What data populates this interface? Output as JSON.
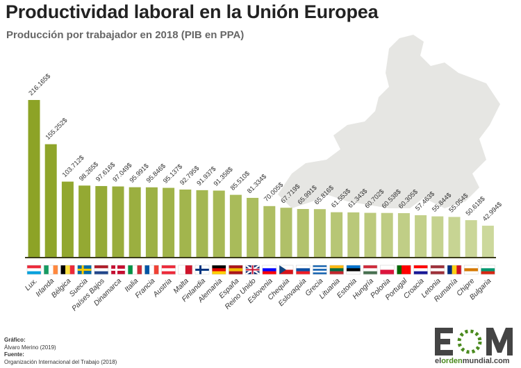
{
  "header": {
    "title": "Productividad laboral en la Unión Europea",
    "subtitle": "Producción por trabajador en 2018 (PIB en PPA)"
  },
  "chart_data": {
    "type": "bar",
    "title": "Productividad laboral en la Unión Europea",
    "subtitle": "Producción por trabajador en 2018 (PIB en PPA)",
    "xlabel": "",
    "ylabel": "",
    "ylim": [
      0,
      220000
    ],
    "grid": false,
    "categories": [
      "Lux.",
      "Irlanda",
      "Bélgica",
      "Suecia",
      "Países Bajos",
      "Dinamarca",
      "Italia",
      "Francia",
      "Austria",
      "Malta",
      "Finlandia",
      "Alemania",
      "España",
      "Reino Unido",
      "Eslovenia",
      "Chequia",
      "Eslovaquia",
      "Grecia",
      "Lituania",
      "Estonia",
      "Hungría",
      "Polonia",
      "Portugal",
      "Croacia",
      "Letonia",
      "Rumanía",
      "Chipre",
      "Bulgaria"
    ],
    "values": [
      216165,
      155252,
      103712,
      98265,
      97616,
      97049,
      95991,
      95846,
      95137,
      92795,
      91937,
      91358,
      85510,
      81334,
      70005,
      67719,
      65991,
      65816,
      61553,
      61343,
      60702,
      60538,
      60305,
      57463,
      55844,
      55054,
      50618,
      42994
    ],
    "value_labels": [
      "216.165$",
      "155.252$",
      "103.712$",
      "98.265$",
      "97.616$",
      "97.049$",
      "95.991$",
      "95.846$",
      "95.137$",
      "92.795$",
      "91.937$",
      "91.358$",
      "85.510$",
      "81.334$",
      "70.005$",
      "67.719$",
      "65.991$",
      "65.816$",
      "61.553$",
      "61.343$",
      "60.702$",
      "60.538$",
      "60.305$",
      "57.463$",
      "55.844$",
      "55.054$",
      "50.618$",
      "42.994$"
    ],
    "colors": {
      "bar_dark": "#8da326",
      "bar_light": "#ccd89c",
      "baseline": "#3a3a1a",
      "map": "#e6e6e3"
    },
    "flags": [
      {
        "d": "h",
        "c": [
          "#ed2939",
          "#ffffff",
          "#00a1de"
        ]
      },
      {
        "d": "v",
        "c": [
          "#169b62",
          "#ffffff",
          "#ff883e"
        ]
      },
      {
        "d": "v",
        "c": [
          "#000000",
          "#fae042",
          "#ed2939"
        ]
      },
      {
        "d": "x",
        "c": [
          "#006aa7",
          "#fecc00"
        ]
      },
      {
        "d": "h",
        "c": [
          "#ae1c28",
          "#ffffff",
          "#21468b"
        ]
      },
      {
        "d": "x",
        "c": [
          "#c60c30",
          "#ffffff"
        ]
      },
      {
        "d": "v",
        "c": [
          "#009246",
          "#ffffff",
          "#ce2b37"
        ]
      },
      {
        "d": "v",
        "c": [
          "#0055a4",
          "#ffffff",
          "#ef4135"
        ]
      },
      {
        "d": "h",
        "c": [
          "#ed2939",
          "#ffffff",
          "#ed2939"
        ]
      },
      {
        "d": "v",
        "c": [
          "#ffffff",
          "#cf142b"
        ]
      },
      {
        "d": "x",
        "c": [
          "#ffffff",
          "#003580"
        ]
      },
      {
        "d": "h",
        "c": [
          "#000000",
          "#dd0000",
          "#ffce00"
        ]
      },
      {
        "d": "h",
        "c": [
          "#aa151b",
          "#f1bf00",
          "#aa151b"
        ]
      },
      {
        "d": "u",
        "c": [
          "#012169",
          "#ffffff",
          "#c8102e"
        ]
      },
      {
        "d": "h",
        "c": [
          "#ffffff",
          "#0000ff",
          "#ff0000"
        ]
      },
      {
        "d": "t",
        "c": [
          "#ffffff",
          "#d7141a",
          "#11457e"
        ]
      },
      {
        "d": "h",
        "c": [
          "#ffffff",
          "#0b4ea2",
          "#ee1c25"
        ]
      },
      {
        "d": "h",
        "c": [
          "#0d5eaf",
          "#ffffff",
          "#0d5eaf",
          "#ffffff",
          "#0d5eaf"
        ]
      },
      {
        "d": "h",
        "c": [
          "#fdb913",
          "#006a44",
          "#c1272d"
        ]
      },
      {
        "d": "h",
        "c": [
          "#0072ce",
          "#000000",
          "#ffffff"
        ]
      },
      {
        "d": "h",
        "c": [
          "#ce2939",
          "#ffffff",
          "#477050"
        ]
      },
      {
        "d": "h",
        "c": [
          "#ffffff",
          "#dc143c"
        ]
      },
      {
        "d": "v",
        "c": [
          "#006600",
          "#ff0000",
          "#ff0000"
        ]
      },
      {
        "d": "h",
        "c": [
          "#ff0000",
          "#ffffff",
          "#171796"
        ]
      },
      {
        "d": "h",
        "c": [
          "#9e3039",
          "#ffffff",
          "#9e3039"
        ]
      },
      {
        "d": "v",
        "c": [
          "#002b7f",
          "#fcd116",
          "#ce1126"
        ]
      },
      {
        "d": "h",
        "c": [
          "#ffffff",
          "#d57800",
          "#ffffff"
        ]
      },
      {
        "d": "h",
        "c": [
          "#ffffff",
          "#00966e",
          "#d62612"
        ]
      }
    ]
  },
  "credits": {
    "graphic_label": "Gráfico:",
    "graphic_author": "Álvaro Merino (2019)",
    "source_label": "Fuente:",
    "source": "Organización Internacional del Trabajo (2018)"
  },
  "logo": {
    "mark": "EOM",
    "site_a": "el",
    "site_b": "orden",
    "site_c": "mundial.com"
  }
}
